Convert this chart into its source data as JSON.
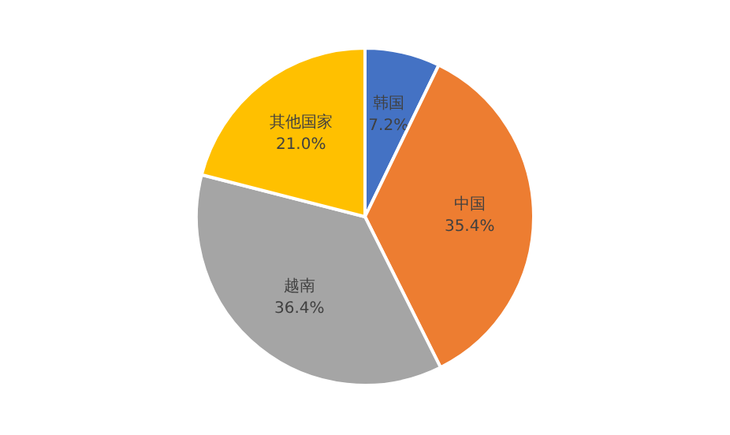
{
  "chart_data": {
    "type": "pie",
    "categories": [
      "韩国",
      "中国",
      "越南",
      "其他国家"
    ],
    "values": [
      7.2,
      35.4,
      36.4,
      21.0
    ],
    "colors": [
      "#4472c4",
      "#ed7d31",
      "#a5a5a5",
      "#ffc000"
    ],
    "value_labels": [
      "7.2%",
      "35.4%",
      "36.4%",
      "21.0%"
    ]
  }
}
